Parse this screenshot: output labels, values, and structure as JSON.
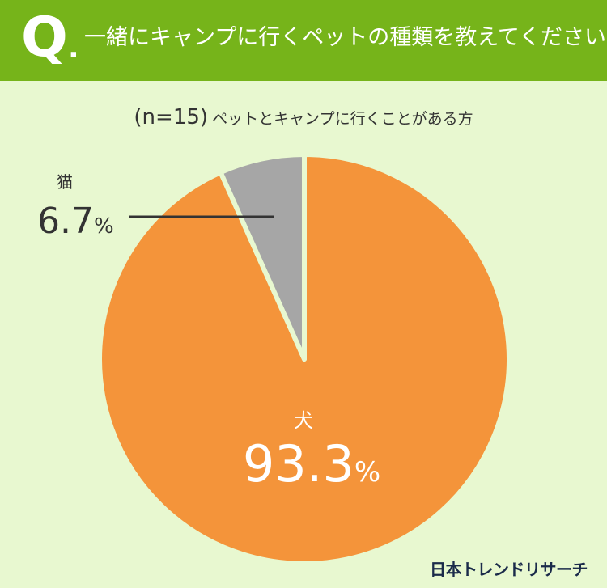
{
  "header": {
    "q_mark": "Q",
    "q_dot": ".",
    "question": "一緒にキャンプに行くペットの種類を教えてください。"
  },
  "subtitle": {
    "n_text": "(n=15)",
    "text": "ペットとキャンプに行くことがある方"
  },
  "brand": "日本トレンドリサーチ",
  "colors": {
    "header_bg": "#76b41a",
    "background": "#e8f8d0",
    "dog_slice": "#f4943a",
    "cat_slice": "#a6a6a6"
  },
  "chart_data": {
    "type": "pie",
    "unit": "%",
    "slices": [
      {
        "label": "犬",
        "value": 93.3,
        "value_text": "93.3",
        "color": "#f4943a"
      },
      {
        "label": "猫",
        "value": 6.7,
        "value_text": "6.7",
        "color": "#a6a6a6"
      }
    ]
  }
}
